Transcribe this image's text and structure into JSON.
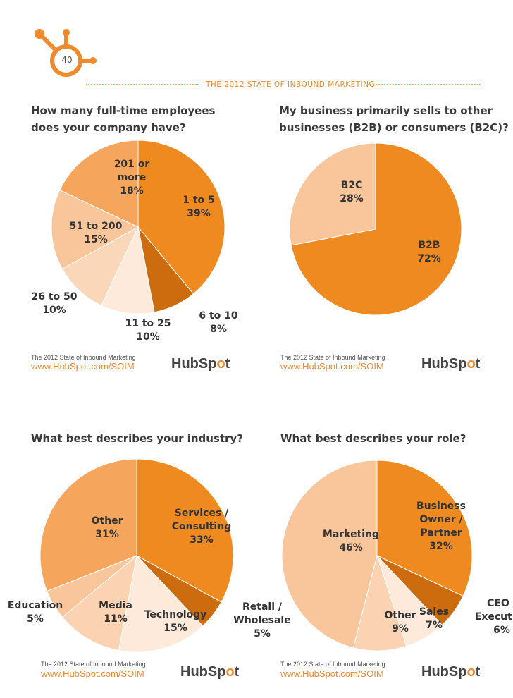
{
  "header": {
    "page_number": "40",
    "report_title": "THE 2012 STATE OF INBOUND MARKETING"
  },
  "colors": {
    "accent": "#f08a2c",
    "text": "#3a3a3a"
  },
  "footer": {
    "source": "The 2012 State of Inbound Marketing",
    "url": "www.HubSpot.com/SOIM",
    "logo_left": "HubSp",
    "logo_o": "o",
    "logo_right": "t"
  },
  "chart_data": [
    {
      "type": "pie",
      "title": "How many full-time employees\ndoes your company have?",
      "slices": [
        {
          "label": "1 to 5",
          "value": 39,
          "display": [
            "1 to 5",
            "39%"
          ],
          "color": "#ee8a1f"
        },
        {
          "label": "6 to 10",
          "value": 8,
          "display": [
            "6 to 10",
            "8%"
          ],
          "color": "#cd6c0e"
        },
        {
          "label": "11 to 25",
          "value": 10,
          "display": [
            "11 to 25",
            "10%"
          ],
          "color": "#fdeadb"
        },
        {
          "label": "26 to 50",
          "value": 10,
          "display": [
            "26 to 50",
            "10%"
          ],
          "color": "#fbd7ba"
        },
        {
          "label": "51 to 200",
          "value": 15,
          "display": [
            "51 to 200",
            "15%"
          ],
          "color": "#f9c69b"
        },
        {
          "label": "201 or more",
          "value": 18,
          "display": [
            "201 or",
            "more",
            "18%"
          ],
          "color": "#f6a65c"
        }
      ]
    },
    {
      "type": "pie",
      "title": "My business primarily sells to other\nbusinesses (B2B) or consumers (B2C)?",
      "slices": [
        {
          "label": "B2B",
          "value": 72,
          "display": [
            "B2B",
            "72%"
          ],
          "color": "#ee8a1f"
        },
        {
          "label": "B2C",
          "value": 28,
          "display": [
            "B2C",
            "28%"
          ],
          "color": "#f9c69b"
        }
      ]
    },
    {
      "type": "pie",
      "title": "What best describes your industry?",
      "slices": [
        {
          "label": "Services / Consulting",
          "value": 33,
          "display": [
            "Services /",
            "Consulting",
            "33%"
          ],
          "color": "#ee8a1f"
        },
        {
          "label": "Retail / Wholesale",
          "value": 5,
          "display": [
            "Retail /",
            "Wholesale",
            "5%"
          ],
          "color": "#cd6c0e"
        },
        {
          "label": "Technology",
          "value": 15,
          "display": [
            "Technology",
            "15%"
          ],
          "color": "#fdeadb"
        },
        {
          "label": "Media",
          "value": 11,
          "display": [
            "Media",
            "11%"
          ],
          "color": "#fbd3b2"
        },
        {
          "label": "Education",
          "value": 5,
          "display": [
            "Education",
            "5%"
          ],
          "color": "#f9c69b"
        },
        {
          "label": "Other",
          "value": 31,
          "display": [
            "Other",
            "31%"
          ],
          "color": "#f6a65c"
        }
      ]
    },
    {
      "type": "pie",
      "title": "What best describes your role?",
      "slices": [
        {
          "label": "Business Owner / Partner",
          "value": 32,
          "display": [
            "Business",
            "Owner /",
            "Partner",
            "32%"
          ],
          "color": "#ee8a1f"
        },
        {
          "label": "CEO / Executive",
          "value": 6,
          "display": [
            "CEO /",
            "Executive",
            "6%"
          ],
          "color": "#cd6c0e"
        },
        {
          "label": "Sales",
          "value": 7,
          "display": [
            "Sales",
            "7%"
          ],
          "color": "#fdeadb"
        },
        {
          "label": "Other",
          "value": 9,
          "display": [
            "Other",
            "9%"
          ],
          "color": "#fbd3b2"
        },
        {
          "label": "Marketing",
          "value": 46,
          "display": [
            "Marketing",
            "46%"
          ],
          "color": "#f9c69b"
        }
      ]
    }
  ]
}
